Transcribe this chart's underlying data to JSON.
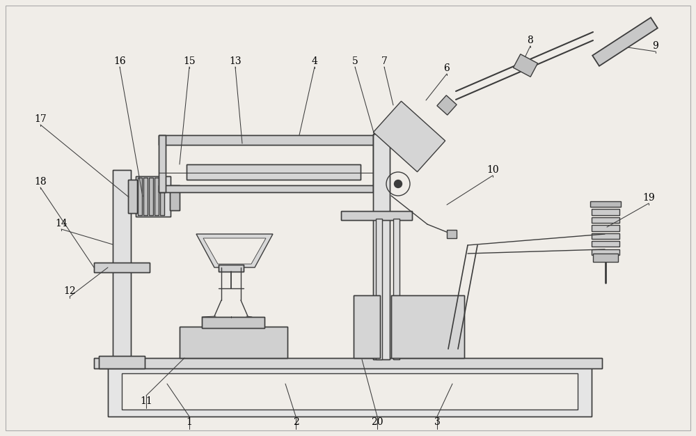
{
  "bg_color": "#f0ede8",
  "line_color": "#3c3c3c",
  "fig_width": 10.0,
  "fig_height": 6.26,
  "lw": 1.0
}
